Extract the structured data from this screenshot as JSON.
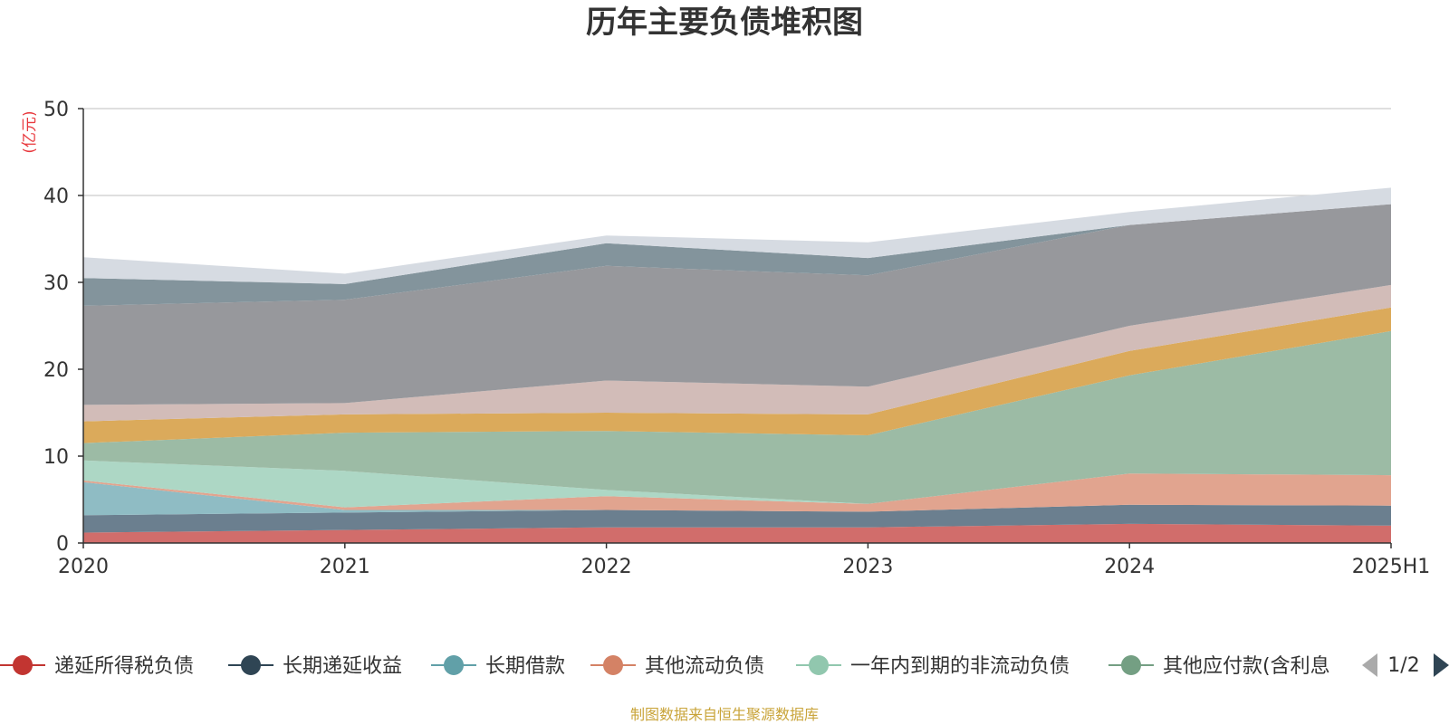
{
  "chart_data": {
    "type": "area",
    "stacked": true,
    "title": "历年主要负债堆积图",
    "unit_label": "(亿元)",
    "categories": [
      "2020",
      "2021",
      "2022",
      "2023",
      "2024",
      "2025H1"
    ],
    "ylim": [
      0,
      50
    ],
    "yticks": [
      "0",
      "10",
      "20",
      "30",
      "40",
      "50"
    ],
    "grid": true,
    "series": [
      {
        "name": "递延所得税负债",
        "color": "#d16d6b",
        "values": [
          1.2,
          1.5,
          1.8,
          1.8,
          2.2,
          2.0
        ]
      },
      {
        "name": "长期递延收益",
        "color": "#6b7f8f",
        "values": [
          2.0,
          2.0,
          2.0,
          1.8,
          2.2,
          2.3
        ]
      },
      {
        "name": "长期借款",
        "color": "#8fbcc4",
        "values": [
          3.8,
          0.3,
          0.0,
          0.0,
          0.0,
          0.0
        ]
      },
      {
        "name": "其他流动负债",
        "color": "#e1a48f",
        "values": [
          0.2,
          0.3,
          1.6,
          0.9,
          3.6,
          3.5
        ]
      },
      {
        "name": "一年内到期的非流动负债",
        "color": "#add7c5",
        "values": [
          2.3,
          4.2,
          0.7,
          0.0,
          0.0,
          0.0
        ]
      },
      {
        "name": "其他应付款(含利息",
        "color": "#9cbba5",
        "values": [
          2.0,
          4.4,
          6.8,
          7.9,
          11.3,
          16.6
        ]
      },
      {
        "name": "",
        "color": "#dbaa5b",
        "values": [
          2.5,
          2.1,
          2.1,
          2.4,
          2.8,
          2.7
        ]
      },
      {
        "name": "",
        "color": "#d2bcb8",
        "values": [
          1.9,
          1.3,
          3.7,
          3.2,
          2.9,
          2.6
        ]
      },
      {
        "name": "",
        "color": "#97989c",
        "values": [
          11.4,
          11.9,
          13.2,
          12.8,
          11.6,
          9.3
        ]
      },
      {
        "name": "",
        "color": "#83949c",
        "values": [
          3.2,
          1.8,
          2.6,
          2.0,
          0.0,
          0.0
        ]
      },
      {
        "name": "",
        "color": "#d6dbe2",
        "values": [
          2.4,
          1.2,
          0.9,
          1.8,
          1.5,
          1.9
        ]
      }
    ]
  },
  "legend": {
    "page": "1/2"
  },
  "source": "制图数据来自恒生聚源数据库"
}
